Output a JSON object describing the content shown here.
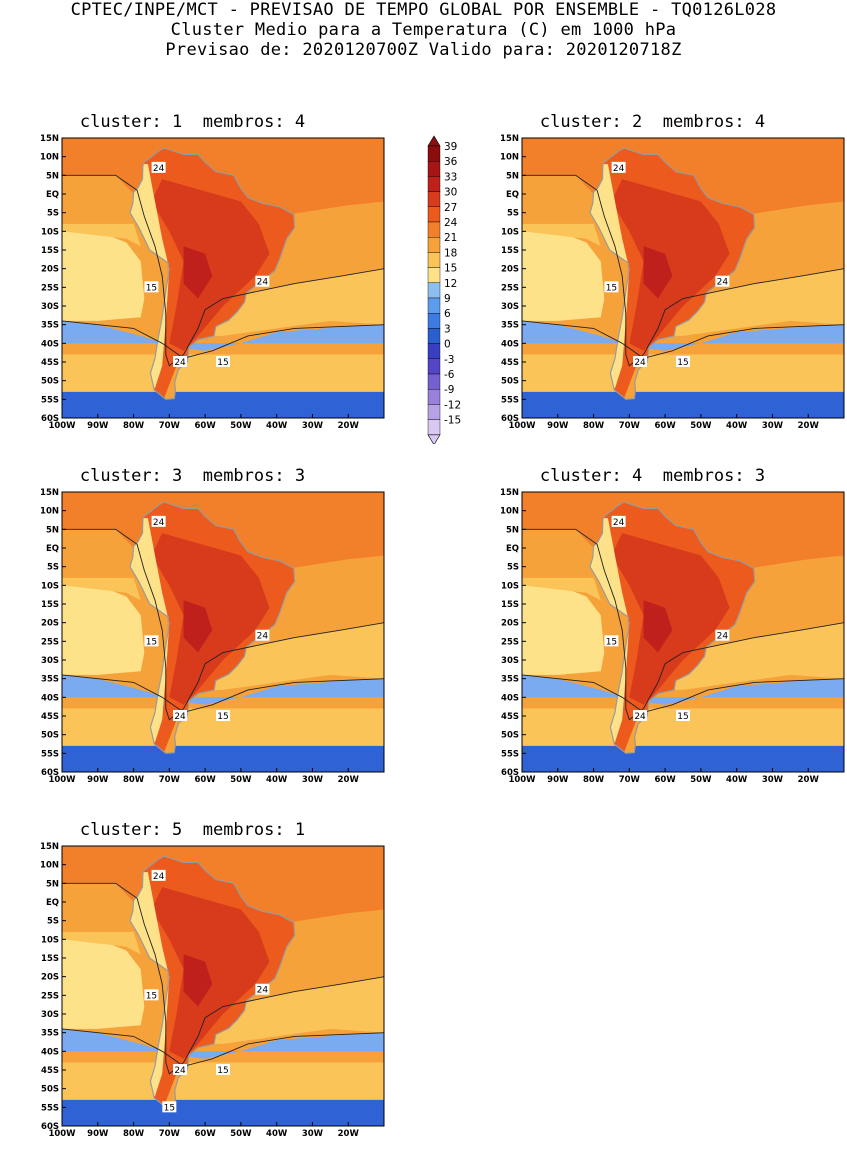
{
  "header": {
    "line1": "CPTEC/INPE/MCT - PREVISAO DE TEMPO GLOBAL POR ENSEMBLE - TQ0126L028",
    "line2": "Cluster Medio para a Temperatura (C) em 1000 hPa",
    "line3": "Previsao de: 2020120700Z   Valido para: 2020120718Z"
  },
  "panels": [
    {
      "title": "cluster: 1  membros: 4",
      "labels": [
        "24",
        "15",
        "24",
        "24",
        "15"
      ]
    },
    {
      "title": "cluster: 2  membros: 4",
      "labels": [
        "24",
        "15",
        "24",
        "24",
        "15"
      ]
    },
    {
      "title": "cluster: 3  membros: 3",
      "labels": [
        "24",
        "15",
        "24",
        "24",
        "15"
      ]
    },
    {
      "title": "cluster: 4  membros: 3",
      "labels": [
        "24",
        "15",
        "24",
        "24",
        "15"
      ]
    },
    {
      "title": "cluster: 5  membros: 1",
      "labels": [
        "24",
        "15",
        "24",
        "24",
        "15",
        "15"
      ]
    }
  ],
  "lat_ticks": [
    "15N",
    "10N",
    "5N",
    "EQ",
    "5S",
    "10S",
    "15S",
    "20S",
    "25S",
    "30S",
    "35S",
    "40S",
    "45S",
    "50S",
    "55S",
    "60S"
  ],
  "lon_ticks": [
    "100W",
    "90W",
    "80W",
    "70W",
    "60W",
    "50W",
    "40W",
    "30W",
    "20W"
  ],
  "colorbar": {
    "values": [
      "39",
      "36",
      "33",
      "30",
      "27",
      "24",
      "21",
      "18",
      "15",
      "12",
      "9",
      "6",
      "3",
      "0",
      "-3",
      "-6",
      "-9",
      "-12",
      "-15"
    ],
    "colors": [
      "#8c0d0d",
      "#a81515",
      "#c0201c",
      "#d83a1c",
      "#ec5a1e",
      "#f2802a",
      "#f6a23a",
      "#fac458",
      "#fde28a",
      "#8cbef2",
      "#5c9ced",
      "#3c7ce2",
      "#2a5fd0",
      "#3a3ec0",
      "#5546c8",
      "#7560d0",
      "#9880dc",
      "#b8a2e6",
      "#d8c8f2"
    ]
  }
}
